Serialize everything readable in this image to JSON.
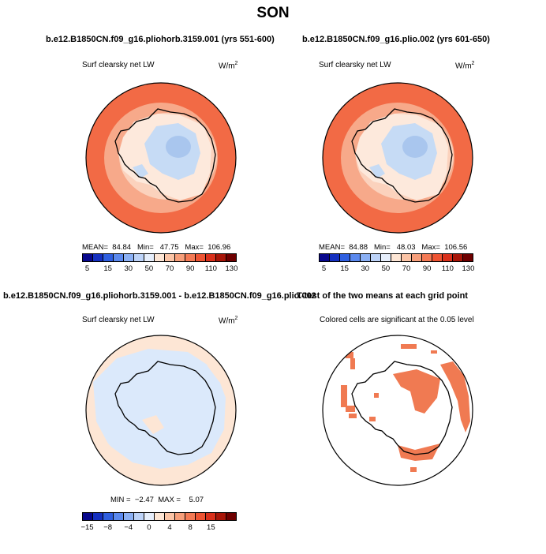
{
  "title": "SON",
  "palette": {
    "ocean_warm": "#f26a45",
    "ocean_mid": "#f7a98a",
    "ocean_light": "#fbd2bd",
    "ice_light": "#fde9dc",
    "land_cold": "#c6dbf5",
    "land_colder": "#a9c6ee",
    "diff_pos": "#fde6d5",
    "diff_neg": "#dbe9fb",
    "sig": "#f07a52"
  },
  "panels": {
    "p1": {
      "title": "b.e12.B1850CN.f09_g16.pliohorb.3159.001 (yrs 551-600)",
      "variable": "Surf clearsky net LW",
      "units": "W/m",
      "units_exp": "2",
      "stats": "MEAN=  84.84   Min=   47.75   Max=  106.96"
    },
    "p2": {
      "title": "b.e12.B1850CN.f09_g16.plio.002 (yrs 601-650)",
      "variable": "Surf clearsky net LW",
      "units": "W/m",
      "units_exp": "2",
      "stats": "MEAN=  84.88   Min=   48.03   Max=  106.56"
    },
    "p3": {
      "title": "b.e12.B1850CN.f09_g16.pliohorb.3159.001 - b.e12.B1850CN.f09_g16.plio.002",
      "variable": "Surf clearsky net LW",
      "units": "W/m",
      "units_exp": "2",
      "stats": "MIN =  −2.47  MAX =    5.07"
    },
    "p4": {
      "title": "T-test of the two means at each grid point",
      "subtitle": "Colored cells are significant at the 0.05 level"
    }
  },
  "colorbar_abs": {
    "colors": [
      "#08088c",
      "#1530c0",
      "#2f5fe0",
      "#5b89ee",
      "#8bb0f4",
      "#bdd3f8",
      "#e6eefb",
      "#fde6d5",
      "#fbc4a6",
      "#f79f7b",
      "#f47a55",
      "#ee5433",
      "#d9301b",
      "#a81508",
      "#6e0000"
    ],
    "labels": [
      "5",
      "15",
      "30",
      "50",
      "70",
      "90",
      "110",
      "130"
    ]
  },
  "colorbar_diff": {
    "colors": [
      "#08088c",
      "#1530c0",
      "#2f5fe0",
      "#5b89ee",
      "#8bb0f4",
      "#bdd3f8",
      "#e6eefb",
      "#fde6d5",
      "#fbc4a6",
      "#f79f7b",
      "#f47a55",
      "#ee5433",
      "#d9301b",
      "#a81508",
      "#6e0000"
    ],
    "labels": [
      "−15",
      "−8",
      "−4",
      "0",
      "4",
      "8",
      "15"
    ]
  }
}
